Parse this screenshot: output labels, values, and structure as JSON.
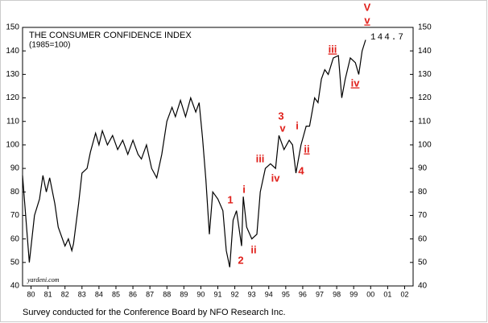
{
  "chart_data": {
    "type": "line",
    "title": "THE CONSUMER CONFIDENCE INDEX",
    "subtitle": "(1985=100)",
    "source": "yardeni.com",
    "footer": "Survey conducted for the Conference Board by NFO Research Inc.",
    "last_value_label": "144.7",
    "annotations": [
      "V",
      "v",
      "iii",
      "iv",
      "3",
      "v",
      "i",
      "ii",
      "4",
      "iii",
      "iv",
      "1",
      "i",
      "2",
      "ii"
    ],
    "color": "#000000",
    "x": [
      1980.0,
      1980.4,
      1980.7,
      1981.0,
      1981.2,
      1981.4,
      1981.6,
      1981.9,
      1982.1,
      1982.5,
      1982.7,
      1982.9,
      1983.0,
      1983.3,
      1983.5,
      1983.8,
      1984.0,
      1984.3,
      1984.5,
      1984.7,
      1985.0,
      1985.3,
      1985.6,
      1985.9,
      1986.2,
      1986.5,
      1986.8,
      1987.0,
      1987.3,
      1987.6,
      1987.9,
      1988.2,
      1988.5,
      1988.8,
      1989.0,
      1989.3,
      1989.6,
      1989.9,
      1990.2,
      1990.4,
      1990.6,
      1990.8,
      1991.0,
      1991.2,
      1991.5,
      1991.8,
      1992.0,
      1992.2,
      1992.4,
      1992.6,
      1992.9,
      1993.0,
      1993.2,
      1993.5,
      1993.8,
      1994.0,
      1994.3,
      1994.6,
      1994.9,
      1995.1,
      1995.4,
      1995.7,
      1995.9,
      1996.1,
      1996.4,
      1996.7,
      1996.9,
      1997.2,
      1997.4,
      1997.6,
      1997.8,
      1998.0,
      1998.3,
      1998.6,
      1998.8,
      1999.0,
      1999.3,
      1999.6,
      1999.8,
      2000.0,
      2000.2
    ],
    "values": [
      87,
      50,
      70,
      77,
      87,
      80,
      86,
      75,
      65,
      57,
      60,
      55,
      58,
      75,
      88,
      90,
      97,
      105,
      100,
      106,
      100,
      104,
      98,
      102,
      96,
      102,
      96,
      94,
      100,
      90,
      86,
      96,
      110,
      116,
      112,
      119,
      112,
      120,
      114,
      118,
      103,
      85,
      62,
      80,
      77,
      72,
      55,
      48,
      68,
      72,
      57,
      78,
      65,
      60,
      62,
      80,
      90,
      92,
      90,
      104,
      98,
      102,
      100,
      88,
      100,
      108,
      108,
      120,
      118,
      128,
      132,
      130,
      137,
      138,
      120,
      128,
      137,
      135,
      130,
      140,
      144.7
    ],
    "xlim": [
      1980,
      2003
    ],
    "xticks": [
      {
        "value": 1980.5,
        "label": "80"
      },
      {
        "value": 1981.5,
        "label": "81"
      },
      {
        "value": 1982.5,
        "label": "82"
      },
      {
        "value": 1983.5,
        "label": "83"
      },
      {
        "value": 1984.5,
        "label": "84"
      },
      {
        "value": 1985.5,
        "label": "85"
      },
      {
        "value": 1986.5,
        "label": "86"
      },
      {
        "value": 1987.5,
        "label": "87"
      },
      {
        "value": 1988.5,
        "label": "88"
      },
      {
        "value": 1989.5,
        "label": "89"
      },
      {
        "value": 1990.5,
        "label": "90"
      },
      {
        "value": 1991.5,
        "label": "91"
      },
      {
        "value": 1992.5,
        "label": "92"
      },
      {
        "value": 1993.5,
        "label": "93"
      },
      {
        "value": 1994.5,
        "label": "94"
      },
      {
        "value": 1995.5,
        "label": "95"
      },
      {
        "value": 1996.5,
        "label": "96"
      },
      {
        "value": 1997.5,
        "label": "97"
      },
      {
        "value": 1998.5,
        "label": "98"
      },
      {
        "value": 1999.5,
        "label": "99"
      },
      {
        "value": 2000.5,
        "label": "00"
      },
      {
        "value": 2001.5,
        "label": "01"
      },
      {
        "value": 2002.5,
        "label": "02"
      }
    ],
    "ylim": [
      40,
      150
    ],
    "yticks": [
      40,
      50,
      60,
      70,
      80,
      90,
      100,
      110,
      120,
      130,
      140,
      150
    ],
    "grid": false
  }
}
